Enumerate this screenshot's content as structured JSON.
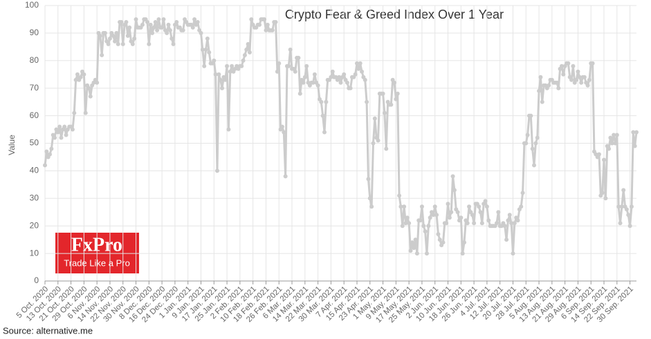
{
  "chart_data": {
    "type": "line",
    "title": "Crypto Fear & Greed Index Over 1 Year",
    "y_label": "Value",
    "source": "Source: alternative.me",
    "logo_name": "FxPro",
    "logo_tagline": "Trade Like a Pro",
    "color": "#cccccc",
    "grid": true,
    "categories": [
      "5 Oct. 2020",
      null,
      null,
      null,
      null,
      null,
      null,
      null,
      "13 Oct. 2020",
      null,
      null,
      null,
      null,
      null,
      null,
      null,
      "21 Oct. 2020",
      null,
      null,
      null,
      null,
      null,
      null,
      null,
      "29 Oct. 2020",
      null,
      null,
      null,
      null,
      null,
      null,
      null,
      "6 Nov. 2020",
      null,
      null,
      null,
      null,
      null,
      null,
      null,
      "14 Nov. 2020",
      null,
      null,
      null,
      null,
      null,
      null,
      null,
      "22 Nov. 2020",
      null,
      null,
      null,
      null,
      null,
      null,
      null,
      "30 Nov. 2020",
      null,
      null,
      null,
      null,
      null,
      null,
      null,
      "8 Dec. 2020",
      null,
      null,
      null,
      null,
      null,
      null,
      null,
      "16 Dec. 2020",
      null,
      null,
      null,
      null,
      null,
      null,
      null,
      "24 Dec. 2020",
      null,
      null,
      null,
      null,
      null,
      null,
      null,
      "1 Jan. 2021",
      null,
      null,
      null,
      null,
      null,
      null,
      null,
      "9 Jan. 2021",
      null,
      null,
      null,
      null,
      null,
      null,
      null,
      "17 Jan. 2021",
      null,
      null,
      null,
      null,
      null,
      null,
      null,
      "25 Jan. 2021",
      null,
      null,
      null,
      null,
      null,
      null,
      null,
      "2 Feb. 2021",
      null,
      null,
      null,
      null,
      null,
      null,
      null,
      "10 Feb. 2021",
      null,
      null,
      null,
      null,
      null,
      null,
      null,
      "18 Feb. 2021",
      null,
      null,
      null,
      null,
      null,
      null,
      null,
      "26 Feb. 2021",
      null,
      null,
      null,
      null,
      null,
      null,
      null,
      "6 Mar. 2021",
      null,
      null,
      null,
      null,
      null,
      null,
      null,
      "14 Mar. 2021",
      null,
      null,
      null,
      null,
      null,
      null,
      null,
      "22 Mar. 2021",
      null,
      null,
      null,
      null,
      null,
      null,
      null,
      "30 Mar. 2021",
      null,
      null,
      null,
      null,
      null,
      null,
      null,
      "7 Apr. 2021",
      null,
      null,
      null,
      null,
      null,
      null,
      null,
      "15 Apr. 2021",
      null,
      null,
      null,
      null,
      null,
      null,
      null,
      "23 Apr. 2021",
      null,
      null,
      null,
      null,
      null,
      null,
      null,
      "1 May. 2021",
      null,
      null,
      null,
      null,
      null,
      null,
      null,
      "9 May. 2021",
      null,
      null,
      null,
      null,
      null,
      null,
      null,
      "17 May. 2021",
      null,
      null,
      null,
      null,
      null,
      null,
      null,
      "25 May. 2021",
      null,
      null,
      null,
      null,
      null,
      null,
      null,
      "2 Jun. 2021",
      null,
      null,
      null,
      null,
      null,
      null,
      null,
      "10 Jun. 2021",
      null,
      null,
      null,
      null,
      null,
      null,
      null,
      "18 Jun. 2021",
      null,
      null,
      null,
      null,
      null,
      null,
      null,
      "26 Jun. 2021",
      null,
      null,
      null,
      null,
      null,
      null,
      null,
      "4 Jul. 2021",
      null,
      null,
      null,
      null,
      null,
      null,
      null,
      "12 Jul. 2021",
      null,
      null,
      null,
      null,
      null,
      null,
      null,
      "20 Jul. 2021",
      null,
      null,
      null,
      null,
      null,
      null,
      null,
      "28 Jul. 2021",
      null,
      null,
      null,
      null,
      null,
      null,
      null,
      "5 Aug. 2021",
      null,
      null,
      null,
      null,
      null,
      null,
      null,
      "13 Aug. 2021",
      null,
      null,
      null,
      null,
      null,
      null,
      null,
      "21 Aug. 2021",
      null,
      null,
      null,
      null,
      null,
      null,
      null,
      "29 Aug. 2021",
      null,
      null,
      null,
      null,
      null,
      null,
      null,
      "6 Sep. 2021",
      null,
      null,
      null,
      null,
      null,
      null,
      null,
      "14 Sep. 2021",
      null,
      null,
      null,
      null,
      null,
      null,
      null,
      "22 Sep. 2021",
      null,
      null,
      null,
      null,
      null,
      null,
      null,
      "30 Sep. 2021",
      null,
      null,
      null,
      null
    ],
    "values": [
      42,
      47,
      45,
      46,
      48,
      53,
      52,
      55,
      54,
      56,
      52,
      55,
      56,
      53,
      55,
      56,
      56,
      55,
      61,
      73,
      75,
      73,
      74,
      76,
      75,
      61,
      71,
      70,
      67,
      71,
      72,
      73,
      72,
      90,
      89,
      82,
      90,
      90,
      87,
      86,
      88,
      90,
      89,
      87,
      90,
      86,
      94,
      94,
      86,
      93,
      94,
      89,
      92,
      87,
      86,
      88,
      95,
      92,
      92,
      92,
      93,
      95,
      95,
      94,
      86,
      93,
      90,
      92,
      94,
      91,
      95,
      92,
      92,
      95,
      91,
      90,
      93,
      91,
      88,
      86,
      93,
      94,
      92,
      92,
      91,
      91,
      95,
      94,
      93,
      93,
      93,
      92,
      95,
      93,
      94,
      91,
      90,
      84,
      78,
      84,
      88,
      83,
      79,
      79,
      80,
      75,
      40,
      75,
      73,
      70,
      74,
      73,
      78,
      55,
      76,
      78,
      76,
      77,
      78,
      77,
      78,
      78,
      80,
      82,
      84,
      86,
      83,
      95,
      93,
      92,
      92,
      93,
      93,
      95,
      95,
      95,
      91,
      93,
      91,
      91,
      91,
      94,
      94,
      76,
      79,
      55,
      56,
      54,
      38,
      78,
      78,
      84,
      77,
      77,
      76,
      81,
      81,
      68,
      73,
      72,
      74,
      78,
      72,
      71,
      72,
      72,
      75,
      72,
      71,
      66,
      65,
      60,
      54,
      65,
      73,
      73,
      74,
      76,
      74,
      74,
      73,
      74,
      72,
      74,
      75,
      73,
      72,
      70,
      70,
      74,
      74,
      75,
      79,
      77,
      79,
      76,
      74,
      73,
      65,
      37,
      30,
      27,
      50,
      59,
      52,
      51,
      68,
      68,
      68,
      61,
      48,
      65,
      64,
      64,
      73,
      72,
      66,
      68,
      31,
      27,
      20,
      27,
      21,
      23,
      21,
      11,
      14,
      12,
      15,
      10,
      22,
      22,
      27,
      20,
      18,
      10,
      20,
      23,
      25,
      24,
      27,
      24,
      17,
      15,
      13,
      14,
      21,
      21,
      28,
      23,
      25,
      38,
      33,
      26,
      25,
      22,
      23,
      10,
      14,
      22,
      21,
      27,
      25,
      24,
      21,
      28,
      28,
      27,
      25,
      21,
      28,
      29,
      27,
      22,
      20,
      20,
      20,
      20,
      21,
      25,
      20,
      20,
      21,
      20,
      15,
      22,
      24,
      21,
      10,
      21,
      23,
      22,
      26,
      27,
      32,
      50,
      50,
      53,
      60,
      60,
      48,
      42,
      50,
      52,
      69,
      74,
      65,
      71,
      71,
      70,
      71,
      73,
      73,
      72,
      72,
      72,
      70,
      77,
      78,
      75,
      78,
      79,
      79,
      74,
      73,
      78,
      72,
      73,
      76,
      74,
      72,
      74,
      74,
      72,
      71,
      73,
      79,
      79,
      47,
      46,
      45,
      46,
      31,
      32,
      44,
      30,
      49,
      48,
      52,
      50,
      53,
      50,
      53,
      27,
      21,
      27,
      33,
      27,
      26,
      24,
      20,
      27,
      54,
      49,
      54
    ],
    "ylim": [
      0,
      100
    ],
    "yticks": [
      0,
      10,
      20,
      30,
      40,
      50,
      60,
      70,
      80,
      90,
      100
    ]
  }
}
